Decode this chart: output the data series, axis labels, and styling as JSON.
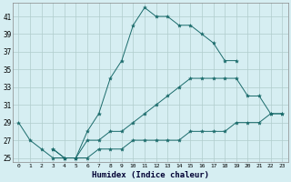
{
  "xlabel": "Humidex (Indice chaleur)",
  "bg_color": "#d6eef2",
  "grid_color": "#b0cccc",
  "line_color": "#1a6b6b",
  "line1_x": [
    0,
    1,
    2,
    3,
    4,
    5,
    6,
    7,
    8,
    9,
    10,
    11,
    12,
    13,
    14,
    15,
    16,
    17,
    18,
    19
  ],
  "line1_y": [
    29,
    27,
    26,
    25,
    25,
    25,
    28,
    30,
    34,
    36,
    40,
    42,
    41,
    41,
    40,
    40,
    39,
    38,
    36,
    36
  ],
  "line2_x": [
    3,
    4,
    5,
    6,
    7,
    8,
    9,
    10,
    11,
    12,
    13,
    14,
    15,
    16,
    17,
    18,
    19,
    20,
    21,
    22,
    23
  ],
  "line2_y": [
    26,
    25,
    25,
    27,
    27,
    28,
    28,
    29,
    30,
    31,
    32,
    33,
    34,
    34,
    34,
    34,
    34,
    32,
    32,
    30,
    30
  ],
  "line3_x": [
    3,
    4,
    5,
    6,
    7,
    8,
    9,
    10,
    11,
    12,
    13,
    14,
    15,
    16,
    17,
    18,
    19,
    20,
    21,
    22,
    23
  ],
  "line3_y": [
    26,
    25,
    25,
    25,
    26,
    26,
    26,
    27,
    27,
    27,
    27,
    27,
    28,
    28,
    28,
    28,
    29,
    29,
    29,
    30,
    30
  ],
  "xlim": [
    -0.5,
    23.5
  ],
  "ylim": [
    24.5,
    42.5
  ],
  "yticks": [
    25,
    27,
    29,
    31,
    33,
    35,
    37,
    39,
    41
  ],
  "xticks": [
    0,
    1,
    2,
    3,
    4,
    5,
    6,
    7,
    8,
    9,
    10,
    11,
    12,
    13,
    14,
    15,
    16,
    17,
    18,
    19,
    20,
    21,
    22,
    23
  ]
}
